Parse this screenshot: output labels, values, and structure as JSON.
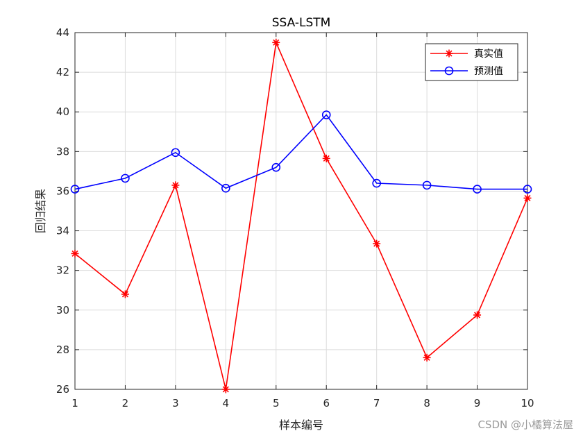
{
  "chart_data": {
    "type": "line",
    "title": "SSA-LSTM",
    "xlabel": "样本编号",
    "ylabel": "回归结果",
    "x": [
      1,
      2,
      3,
      4,
      5,
      6,
      7,
      8,
      9,
      10
    ],
    "xlim": [
      1,
      10
    ],
    "ylim": [
      26,
      44
    ],
    "xticks": [
      "1",
      "2",
      "3",
      "4",
      "5",
      "6",
      "7",
      "8",
      "9",
      "10"
    ],
    "yticks": [
      "26",
      "28",
      "30",
      "32",
      "34",
      "36",
      "38",
      "40",
      "42",
      "44"
    ],
    "grid": true,
    "legend_position": "top-right",
    "series": [
      {
        "name": "真实值",
        "color": "#ff0000",
        "marker": "asterisk",
        "values": [
          32.85,
          30.8,
          36.3,
          26.0,
          43.5,
          37.65,
          33.35,
          27.6,
          29.75,
          35.65
        ]
      },
      {
        "name": "预测值",
        "color": "#0000ff",
        "marker": "circle",
        "values": [
          36.1,
          36.65,
          37.95,
          36.15,
          37.2,
          39.85,
          36.4,
          36.3,
          36.1,
          36.1
        ]
      }
    ]
  },
  "watermark": "CSDN @小橘算法屋"
}
